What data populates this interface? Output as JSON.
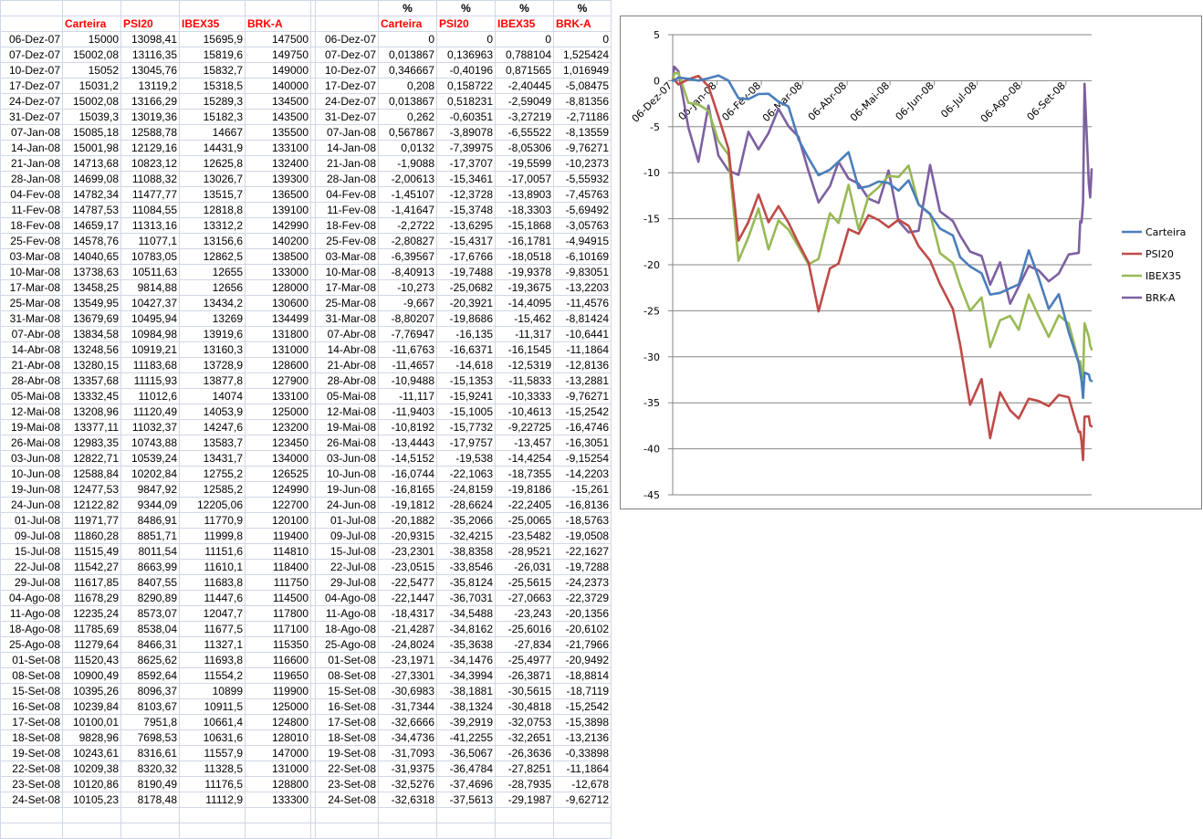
{
  "headers": {
    "row1": [
      "",
      "",
      "",
      "",
      "",
      "",
      "",
      "%",
      "%",
      "%",
      "%"
    ],
    "row2": [
      "",
      "Carteira",
      "PSI20",
      "IBEX35",
      "BRK-A",
      "",
      "",
      "Carteira",
      "PSI20",
      "IBEX35",
      "BRK-A"
    ]
  },
  "rows": [
    [
      "06-Dez-07",
      "15000",
      "13098,41",
      "15695,9",
      "147500",
      "",
      "06-Dez-07",
      "0",
      "0",
      "0",
      "0"
    ],
    [
      "07-Dez-07",
      "15002,08",
      "13116,35",
      "15819,6",
      "149750",
      "",
      "07-Dez-07",
      "0,013867",
      "0,136963",
      "0,788104",
      "1,525424"
    ],
    [
      "10-Dez-07",
      "15052",
      "13045,76",
      "15832,7",
      "149000",
      "",
      "10-Dez-07",
      "0,346667",
      "-0,40196",
      "0,871565",
      "1,016949"
    ],
    [
      "17-Dez-07",
      "15031,2",
      "13119,2",
      "15318,5",
      "140000",
      "",
      "17-Dez-07",
      "0,208",
      "0,158722",
      "-2,40445",
      "-5,08475"
    ],
    [
      "24-Dez-07",
      "15002,08",
      "13166,29",
      "15289,3",
      "134500",
      "",
      "24-Dez-07",
      "0,013867",
      "0,518231",
      "-2,59049",
      "-8,81356"
    ],
    [
      "31-Dez-07",
      "15039,3",
      "13019,36",
      "15182,3",
      "143500",
      "",
      "31-Dez-07",
      "0,262",
      "-0,60351",
      "-3,27219",
      "-2,71186"
    ],
    [
      "07-Jan-08",
      "15085,18",
      "12588,78",
      "14667",
      "135500",
      "",
      "07-Jan-08",
      "0,567867",
      "-3,89078",
      "-6,55522",
      "-8,13559"
    ],
    [
      "14-Jan-08",
      "15001,98",
      "12129,16",
      "14431,9",
      "133100",
      "",
      "14-Jan-08",
      "0,0132",
      "-7,39975",
      "-8,05306",
      "-9,76271"
    ],
    [
      "21-Jan-08",
      "14713,68",
      "10823,12",
      "12625,8",
      "132400",
      "",
      "21-Jan-08",
      "-1,9088",
      "-17,3707",
      "-19,5599",
      "-10,2373"
    ],
    [
      "28-Jan-08",
      "14699,08",
      "11088,32",
      "13026,7",
      "139300",
      "",
      "28-Jan-08",
      "-2,00613",
      "-15,3461",
      "-17,0057",
      "-5,55932"
    ],
    [
      "04-Fev-08",
      "14782,34",
      "11477,77",
      "13515,7",
      "136500",
      "",
      "04-Fev-08",
      "-1,45107",
      "-12,3728",
      "-13,8903",
      "-7,45763"
    ],
    [
      "11-Fev-08",
      "14787,53",
      "11084,55",
      "12818,8",
      "139100",
      "",
      "11-Fev-08",
      "-1,41647",
      "-15,3748",
      "-18,3303",
      "-5,69492"
    ],
    [
      "18-Fev-08",
      "14659,17",
      "11313,16",
      "13312,2",
      "142990",
      "",
      "18-Fev-08",
      "-2,2722",
      "-13,6295",
      "-15,1868",
      "-3,05763"
    ],
    [
      "25-Fev-08",
      "14578,76",
      "11077,1",
      "13156,6",
      "140200",
      "",
      "25-Fev-08",
      "-2,80827",
      "-15,4317",
      "-16,1781",
      "-4,94915"
    ],
    [
      "03-Mar-08",
      "14040,65",
      "10783,05",
      "12862,5",
      "138500",
      "",
      "03-Mar-08",
      "-6,39567",
      "-17,6766",
      "-18,0518",
      "-6,10169"
    ],
    [
      "10-Mar-08",
      "13738,63",
      "10511,63",
      "12655",
      "133000",
      "",
      "10-Mar-08",
      "-8,40913",
      "-19,7488",
      "-19,9378",
      "-9,83051"
    ],
    [
      "17-Mar-08",
      "13458,25",
      "9814,88",
      "12656",
      "128000",
      "",
      "17-Mar-08",
      "-10,273",
      "-25,0682",
      "-19,3675",
      "-13,2203"
    ],
    [
      "25-Mar-08",
      "13549,95",
      "10427,37",
      "13434,2",
      "130600",
      "",
      "25-Mar-08",
      "-9,667",
      "-20,3921",
      "-14,4095",
      "-11,4576"
    ],
    [
      "31-Mar-08",
      "13679,69",
      "10495,94",
      "13269",
      "134499",
      "",
      "31-Mar-08",
      "-8,80207",
      "-19,8686",
      "-15,462",
      "-8,81424"
    ],
    [
      "07-Abr-08",
      "13834,58",
      "10984,98",
      "13919,6",
      "131800",
      "",
      "07-Abr-08",
      "-7,76947",
      "-16,135",
      "-11,317",
      "-10,6441"
    ],
    [
      "14-Abr-08",
      "13248,56",
      "10919,21",
      "13160,3",
      "131000",
      "",
      "14-Abr-08",
      "-11,6763",
      "-16,6371",
      "-16,1545",
      "-11,1864"
    ],
    [
      "21-Abr-08",
      "13280,15",
      "11183,68",
      "13728,9",
      "128600",
      "",
      "21-Abr-08",
      "-11,4657",
      "-14,618",
      "-12,5319",
      "-12,8136"
    ],
    [
      "28-Abr-08",
      "13357,68",
      "11115,93",
      "13877,8",
      "127900",
      "",
      "28-Abr-08",
      "-10,9488",
      "-15,1353",
      "-11,5833",
      "-13,2881"
    ],
    [
      "05-Mai-08",
      "13332,45",
      "11012,6",
      "14074",
      "133100",
      "",
      "05-Mai-08",
      "-11,117",
      "-15,9241",
      "-10,3333",
      "-9,76271"
    ],
    [
      "12-Mai-08",
      "13208,96",
      "11120,49",
      "14053,9",
      "125000",
      "",
      "12-Mai-08",
      "-11,9403",
      "-15,1005",
      "-10,4613",
      "-15,2542"
    ],
    [
      "19-Mai-08",
      "13377,11",
      "11032,37",
      "14247,6",
      "123200",
      "",
      "19-Mai-08",
      "-10,8192",
      "-15,7732",
      "-9,22725",
      "-16,4746"
    ],
    [
      "26-Mai-08",
      "12983,35",
      "10743,88",
      "13583,7",
      "123450",
      "",
      "26-Mai-08",
      "-13,4443",
      "-17,9757",
      "-13,457",
      "-16,3051"
    ],
    [
      "03-Jun-08",
      "12822,71",
      "10539,24",
      "13431,7",
      "134000",
      "",
      "03-Jun-08",
      "-14,5152",
      "-19,538",
      "-14,4254",
      "-9,15254"
    ],
    [
      "10-Jun-08",
      "12588,84",
      "10202,84",
      "12755,2",
      "126525",
      "",
      "10-Jun-08",
      "-16,0744",
      "-22,1063",
      "-18,7355",
      "-14,2203"
    ],
    [
      "19-Jun-08",
      "12477,53",
      "9847,92",
      "12585,2",
      "124990",
      "",
      "19-Jun-08",
      "-16,8165",
      "-24,8159",
      "-19,8186",
      "-15,261"
    ],
    [
      "24-Jun-08",
      "12122,82",
      "9344,09",
      "12205,06",
      "122700",
      "",
      "24-Jun-08",
      "-19,1812",
      "-28,6624",
      "-22,2405",
      "-16,8136"
    ],
    [
      "01-Jul-08",
      "11971,77",
      "8486,91",
      "11770,9",
      "120100",
      "",
      "01-Jul-08",
      "-20,1882",
      "-35,2066",
      "-25,0065",
      "-18,5763"
    ],
    [
      "09-Jul-08",
      "11860,28",
      "8851,71",
      "11999,8",
      "119400",
      "",
      "09-Jul-08",
      "-20,9315",
      "-32,4215",
      "-23,5482",
      "-19,0508"
    ],
    [
      "15-Jul-08",
      "11515,49",
      "8011,54",
      "11151,6",
      "114810",
      "",
      "15-Jul-08",
      "-23,2301",
      "-38,8358",
      "-28,9521",
      "-22,1627"
    ],
    [
      "22-Jul-08",
      "11542,27",
      "8663,99",
      "11610,1",
      "118400",
      "",
      "22-Jul-08",
      "-23,0515",
      "-33,8546",
      "-26,031",
      "-19,7288"
    ],
    [
      "29-Jul-08",
      "11617,85",
      "8407,55",
      "11683,8",
      "111750",
      "",
      "29-Jul-08",
      "-22,5477",
      "-35,8124",
      "-25,5615",
      "-24,2373"
    ],
    [
      "04-Ago-08",
      "11678,29",
      "8290,89",
      "11447,6",
      "114500",
      "",
      "04-Ago-08",
      "-22,1447",
      "-36,7031",
      "-27,0663",
      "-22,3729"
    ],
    [
      "11-Ago-08",
      "12235,24",
      "8573,07",
      "12047,7",
      "117800",
      "",
      "11-Ago-08",
      "-18,4317",
      "-34,5488",
      "-23,243",
      "-20,1356"
    ],
    [
      "18-Ago-08",
      "11785,69",
      "8538,04",
      "11677,5",
      "117100",
      "",
      "18-Ago-08",
      "-21,4287",
      "-34,8162",
      "-25,6016",
      "-20,6102"
    ],
    [
      "25-Ago-08",
      "11279,64",
      "8466,31",
      "11327,1",
      "115350",
      "",
      "25-Ago-08",
      "-24,8024",
      "-35,3638",
      "-27,834",
      "-21,7966"
    ],
    [
      "01-Set-08",
      "11520,43",
      "8625,62",
      "11693,8",
      "116600",
      "",
      "01-Set-08",
      "-23,1971",
      "-34,1476",
      "-25,4977",
      "-20,9492"
    ],
    [
      "08-Set-08",
      "10900,49",
      "8592,64",
      "11554,2",
      "119650",
      "",
      "08-Set-08",
      "-27,3301",
      "-34,3994",
      "-26,3871",
      "-18,8814"
    ],
    [
      "15-Set-08",
      "10395,26",
      "8096,37",
      "10899",
      "119900",
      "",
      "15-Set-08",
      "-30,6983",
      "-38,1881",
      "-30,5615",
      "-18,7119"
    ],
    [
      "16-Set-08",
      "10239,84",
      "8103,67",
      "10911,5",
      "125000",
      "",
      "16-Set-08",
      "-31,7344",
      "-38,1324",
      "-30,4818",
      "-15,2542"
    ],
    [
      "17-Set-08",
      "10100,01",
      "7951,8",
      "10661,4",
      "124800",
      "",
      "17-Set-08",
      "-32,6666",
      "-39,2919",
      "-32,0753",
      "-15,3898"
    ],
    [
      "18-Set-08",
      "9828,96",
      "7698,53",
      "10631,6",
      "128010",
      "",
      "18-Set-08",
      "-34,4736",
      "-41,2255",
      "-32,2651",
      "-13,2136"
    ],
    [
      "19-Set-08",
      "10243,61",
      "8316,61",
      "11557,9",
      "147000",
      "",
      "19-Set-08",
      "-31,7093",
      "-36,5067",
      "-26,3636",
      "-0,33898"
    ],
    [
      "22-Set-08",
      "10209,38",
      "8320,32",
      "11328,5",
      "131000",
      "",
      "22-Set-08",
      "-31,9375",
      "-36,4784",
      "-27,8251",
      "-11,1864"
    ],
    [
      "23-Set-08",
      "10120,86",
      "8190,49",
      "11176,5",
      "128800",
      "",
      "23-Set-08",
      "-32,5276",
      "-37,4696",
      "-28,7935",
      "-12,678"
    ],
    [
      "24-Set-08",
      "10105,23",
      "8178,48",
      "11112,9",
      "133300",
      "",
      "24-Set-08",
      "-32,6318",
      "-37,5613",
      "-29,1987",
      "-9,62712"
    ]
  ],
  "chart_data": {
    "type": "line",
    "x": [
      "06-Dez-07",
      "07-Dez-07",
      "10-Dez-07",
      "17-Dez-07",
      "24-Dez-07",
      "31-Dez-07",
      "07-Jan-08",
      "14-Jan-08",
      "21-Jan-08",
      "28-Jan-08",
      "04-Fev-08",
      "11-Fev-08",
      "18-Fev-08",
      "25-Fev-08",
      "03-Mar-08",
      "10-Mar-08",
      "17-Mar-08",
      "25-Mar-08",
      "31-Mar-08",
      "07-Abr-08",
      "14-Abr-08",
      "21-Abr-08",
      "28-Abr-08",
      "05-Mai-08",
      "12-Mai-08",
      "19-Mai-08",
      "26-Mai-08",
      "03-Jun-08",
      "10-Jun-08",
      "19-Jun-08",
      "24-Jun-08",
      "01-Jul-08",
      "09-Jul-08",
      "15-Jul-08",
      "22-Jul-08",
      "29-Jul-08",
      "04-Ago-08",
      "11-Ago-08",
      "18-Ago-08",
      "25-Ago-08",
      "01-Set-08",
      "08-Set-08",
      "15-Set-08",
      "16-Set-08",
      "17-Set-08",
      "18-Set-08",
      "19-Set-08",
      "22-Set-08",
      "23-Set-08",
      "24-Set-08"
    ],
    "tick_labels": [
      "06-Dez-07",
      "06-Jan-08",
      "06-Fev-08",
      "06-Mar-08",
      "06-Abr-08",
      "06-Mai-08",
      "06-Jun-08",
      "06-Jul-08",
      "06-Ago-08",
      "06-Set-08"
    ],
    "y_ticks": [
      "5",
      "0",
      "-5",
      "-10",
      "-15",
      "-20",
      "-25",
      "-30",
      "-35",
      "-40",
      "-45"
    ],
    "ylim": [
      -45,
      5
    ],
    "grid": true,
    "legend_position": "right",
    "series": [
      {
        "name": "Carteira",
        "color": "#4a7ebb",
        "values": [
          0,
          0.013867,
          0.346667,
          0.208,
          0.013867,
          0.262,
          0.567867,
          0.0132,
          -1.9088,
          -2.00613,
          -1.45107,
          -1.41647,
          -2.2722,
          -2.80827,
          -6.39567,
          -8.40913,
          -10.273,
          -9.667,
          -8.80207,
          -7.76947,
          -11.6763,
          -11.4657,
          -10.9488,
          -11.117,
          -11.9403,
          -10.8192,
          -13.4443,
          -14.5152,
          -16.0744,
          -16.8165,
          -19.1812,
          -20.1882,
          -20.9315,
          -23.2301,
          -23.0515,
          -22.5477,
          -22.1447,
          -18.4317,
          -21.4287,
          -24.8024,
          -23.1971,
          -27.3301,
          -30.6983,
          -31.7344,
          -32.6666,
          -34.4736,
          -31.7093,
          -31.9375,
          -32.5276,
          -32.6318
        ]
      },
      {
        "name": "PSI20",
        "color": "#be4b48",
        "values": [
          0,
          0.136963,
          -0.40196,
          0.158722,
          0.518231,
          -0.60351,
          -3.89078,
          -7.39975,
          -17.3707,
          -15.3461,
          -12.3728,
          -15.3748,
          -13.6295,
          -15.4317,
          -17.6766,
          -19.7488,
          -25.0682,
          -20.3921,
          -19.8686,
          -16.135,
          -16.6371,
          -14.618,
          -15.1353,
          -15.9241,
          -15.1005,
          -15.7732,
          -17.9757,
          -19.538,
          -22.1063,
          -24.8159,
          -28.6624,
          -35.2066,
          -32.4215,
          -38.8358,
          -33.8546,
          -35.8124,
          -36.7031,
          -34.5488,
          -34.8162,
          -35.3638,
          -34.1476,
          -34.3994,
          -38.1881,
          -38.1324,
          -39.2919,
          -41.2255,
          -36.5067,
          -36.4784,
          -37.4696,
          -37.5613
        ]
      },
      {
        "name": "IBEX35",
        "color": "#98b954",
        "values": [
          0,
          0.788104,
          0.871565,
          -2.40445,
          -2.59049,
          -3.27219,
          -6.55522,
          -8.05306,
          -19.5599,
          -17.0057,
          -13.8903,
          -18.3303,
          -15.1868,
          -16.1781,
          -18.0518,
          -19.9378,
          -19.3675,
          -14.4095,
          -15.462,
          -11.317,
          -16.1545,
          -12.5319,
          -11.5833,
          -10.3333,
          -10.4613,
          -9.22725,
          -13.457,
          -14.4254,
          -18.7355,
          -19.8186,
          -22.2405,
          -25.0065,
          -23.5482,
          -28.9521,
          -26.031,
          -25.5615,
          -27.0663,
          -23.243,
          -25.6016,
          -27.834,
          -25.4977,
          -26.3871,
          -30.5615,
          -30.4818,
          -32.0753,
          -32.2651,
          -26.3636,
          -27.8251,
          -28.7935,
          -29.1987
        ]
      },
      {
        "name": "BRK-A",
        "color": "#7d60a0",
        "values": [
          0,
          1.525424,
          1.016949,
          -5.08475,
          -8.81356,
          -2.71186,
          -8.13559,
          -9.76271,
          -10.2373,
          -5.55932,
          -7.45763,
          -5.69492,
          -3.05763,
          -4.94915,
          -6.10169,
          -9.83051,
          -13.2203,
          -11.4576,
          -8.81424,
          -10.6441,
          -11.1864,
          -12.8136,
          -13.2881,
          -9.76271,
          -15.2542,
          -16.4746,
          -16.3051,
          -9.15254,
          -14.2203,
          -15.261,
          -16.8136,
          -18.5763,
          -19.0508,
          -22.1627,
          -19.7288,
          -24.2373,
          -22.3729,
          -20.1356,
          -20.6102,
          -21.7966,
          -20.9492,
          -18.8814,
          -18.7119,
          -15.2542,
          -15.3898,
          -13.2136,
          -0.33898,
          -11.1864,
          -12.678,
          -9.62712
        ]
      }
    ]
  }
}
